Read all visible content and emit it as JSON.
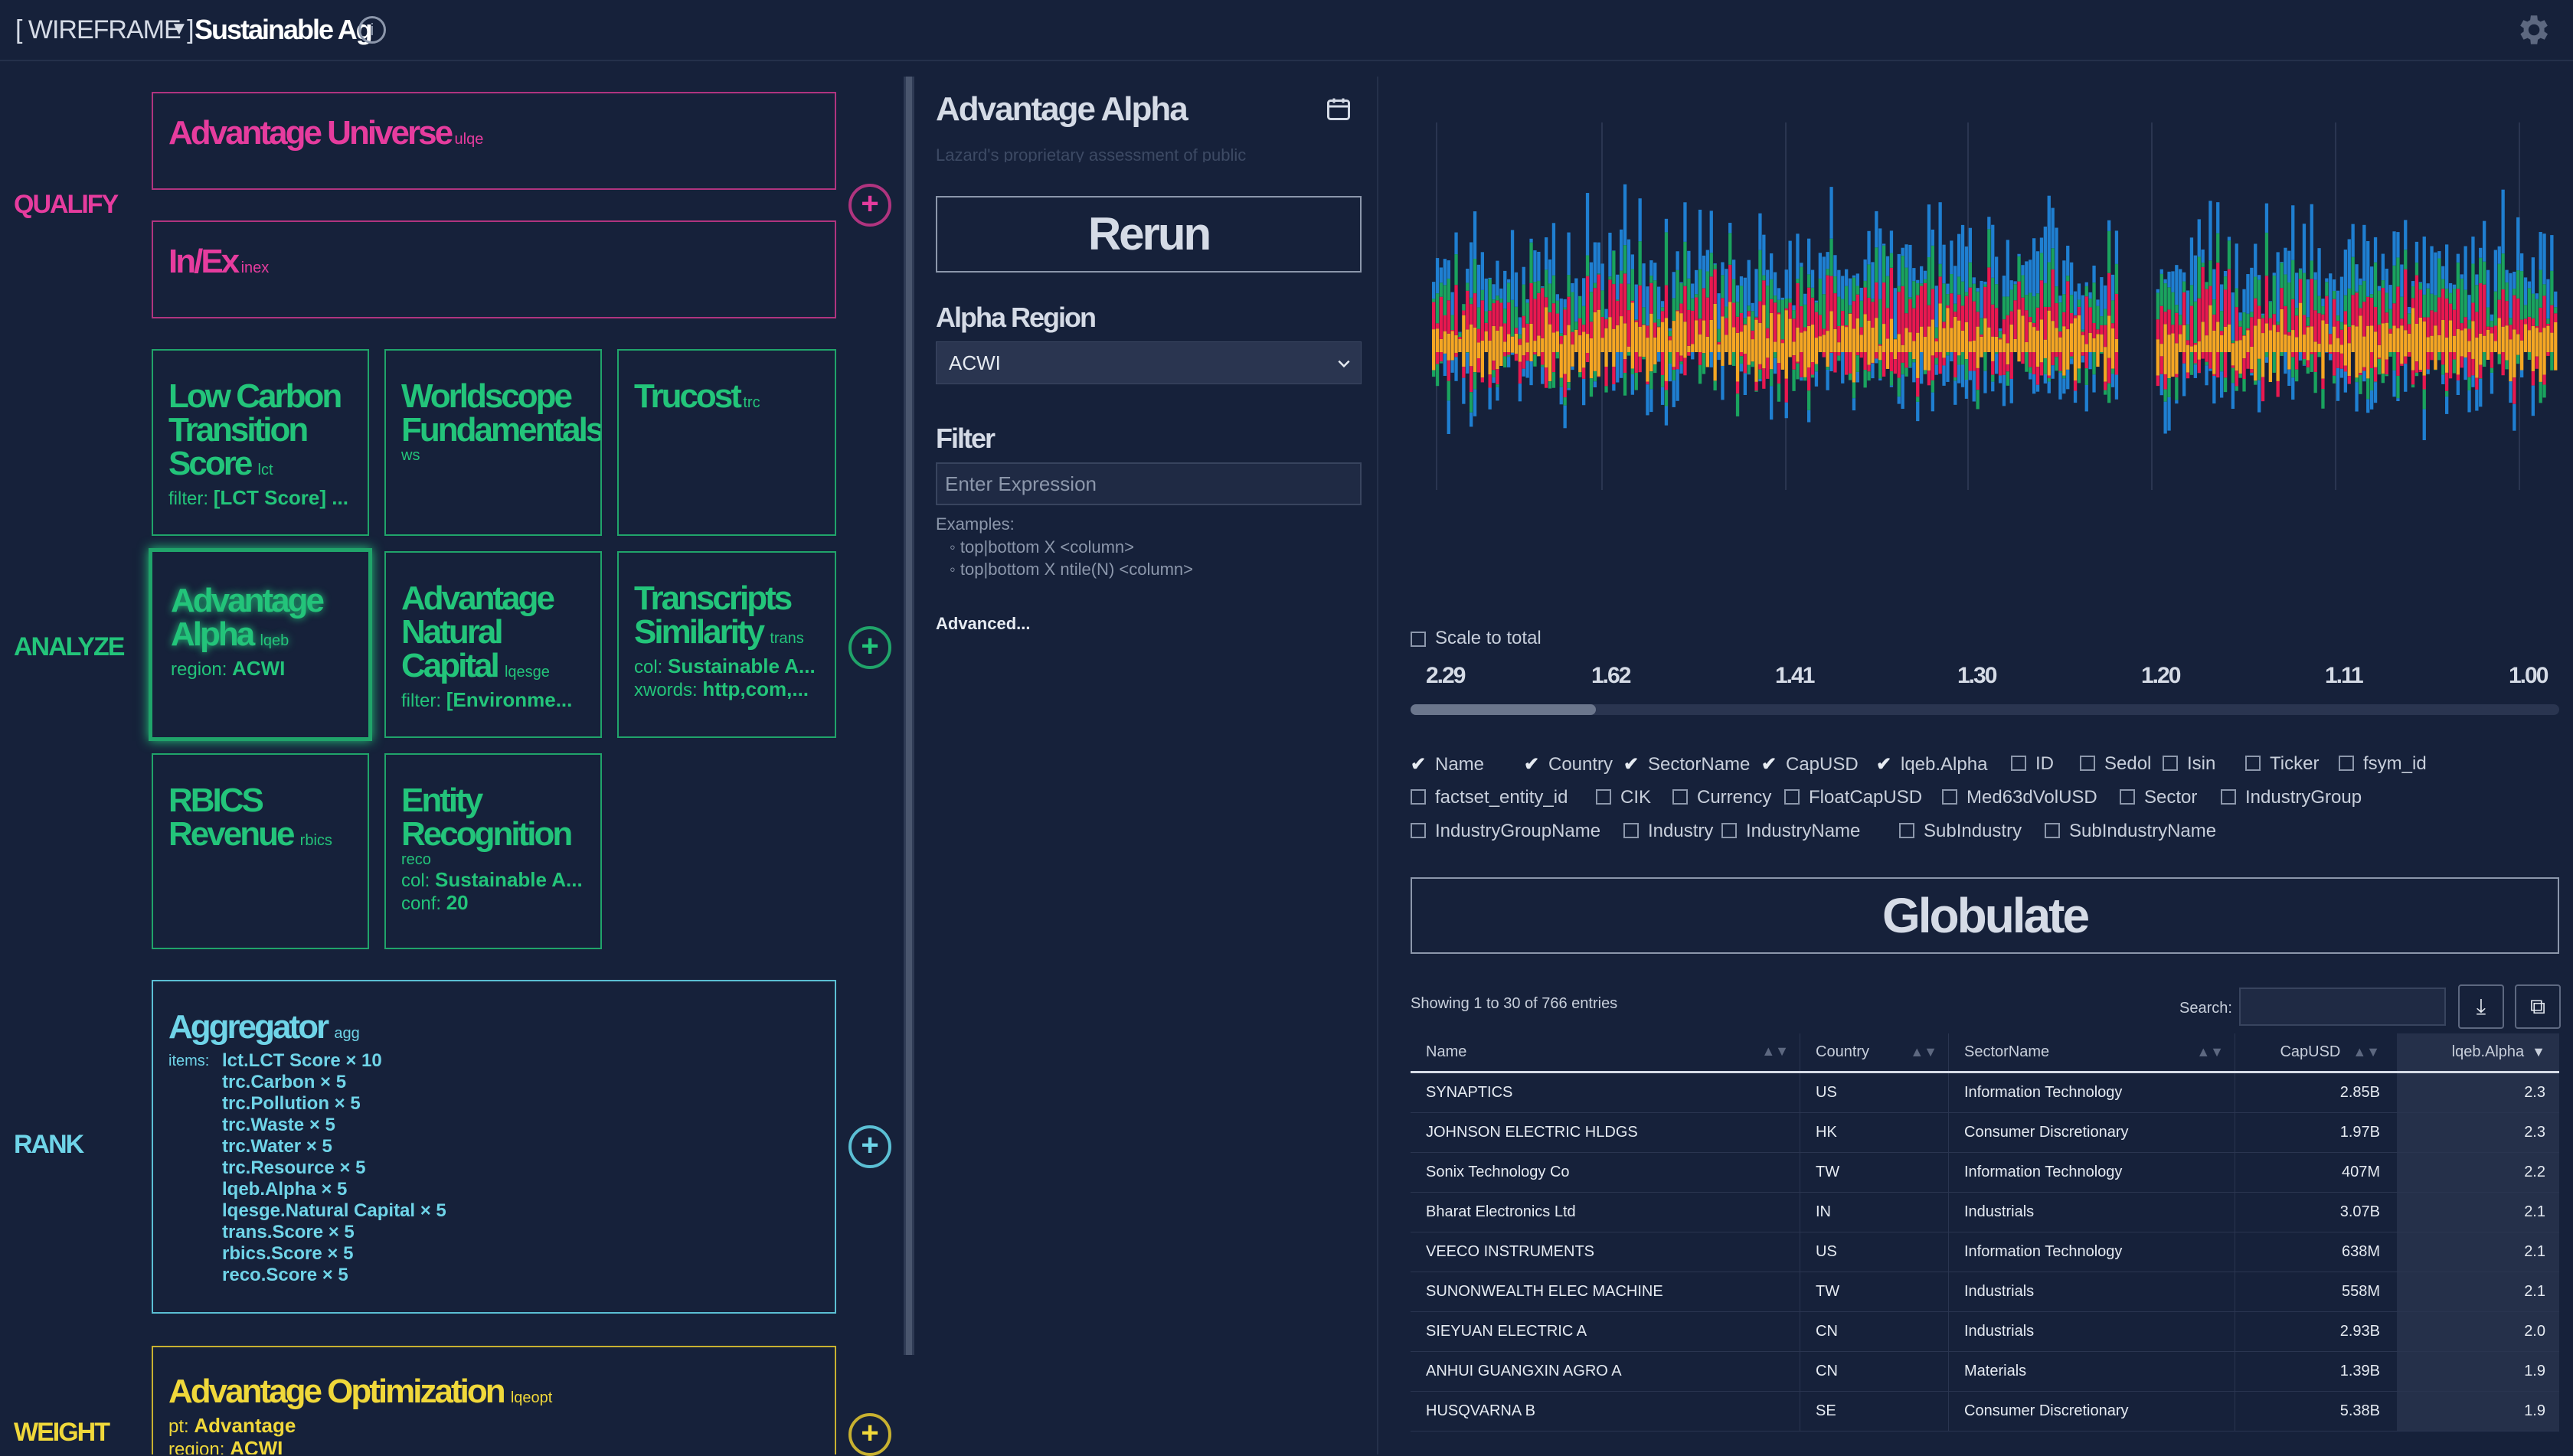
{
  "topbar": {
    "wireframe": "[ WIREFRAME ]",
    "caret": "▼",
    "title": "Sustainable Ag",
    "info": "i"
  },
  "stages": {
    "qualify": "QUALIFY",
    "analyze": "ANALYZE",
    "rank": "RANK",
    "weight": "WEIGHT"
  },
  "cards": {
    "universe": {
      "title": "Advantage Universe",
      "code": "ulqe"
    },
    "inex": {
      "title": "In/Ex",
      "code": "inex"
    },
    "lct": {
      "title": "Low Carbon Transition Score",
      "code": "lct",
      "meta_key": "filter:",
      "meta_val": "[LCT Score] ..."
    },
    "ws": {
      "title": "Worldscope Fundamentals",
      "code": "ws"
    },
    "trc": {
      "title": "Trucost",
      "code": "trc"
    },
    "alpha": {
      "title": "Advantage Alpha",
      "code": "lqeb",
      "meta_key": "region:",
      "meta_val": "ACWI"
    },
    "nat": {
      "title": "Advantage Natural Capital",
      "code": "lqesge",
      "meta_key": "filter:",
      "meta_val": "[Environme..."
    },
    "trans": {
      "title": "Transcripts Similarity",
      "code": "trans",
      "meta_key": "col:",
      "meta_val": "Sustainable A...",
      "meta2_key": "xwords:",
      "meta2_val": "http,com,..."
    },
    "rbics": {
      "title": "RBICS Revenue",
      "code": "rbics"
    },
    "reco": {
      "title": "Entity Recognition",
      "code": "reco",
      "meta_key": "col:",
      "meta_val": "Sustainable A...",
      "meta2_key": "conf:",
      "meta2_val": "20"
    },
    "agg": {
      "title": "Aggregator",
      "code": "agg",
      "items_key": "items:",
      "items": [
        "lct.LCT Score × 10",
        "trc.Carbon × 5",
        "trc.Pollution × 5",
        "trc.Waste × 5",
        "trc.Water × 5",
        "trc.Resource × 5",
        "lqeb.Alpha × 5",
        "lqesge.Natural Capital × 5",
        "trans.Score × 5",
        "rbics.Score × 5",
        "reco.Score × 5"
      ]
    },
    "opt": {
      "title": "Advantage Optimization",
      "code": "lqeopt",
      "meta_key": "pt:",
      "meta_val": "Advantage",
      "meta2_key": "region:",
      "meta2_val": "ACWI"
    }
  },
  "mid": {
    "title": "Advantage Alpha",
    "description": "Lazard's proprietary assessment of public",
    "rerun": "Rerun",
    "region_label": "Alpha Region",
    "region_value": "ACWI",
    "filter_label": "Filter",
    "filter_placeholder": "Enter Expression",
    "examples_label": "Examples:",
    "examples": [
      "top|bottom X <column>",
      "top|bottom X ntile(N) <column>"
    ],
    "advanced": "Advanced..."
  },
  "chart_data": {
    "type": "bar",
    "stacked": true,
    "x_ticks": [
      "2.29",
      "1.62",
      "1.41",
      "1.30",
      "1.20",
      "1.11",
      "1.00"
    ],
    "series_colors": [
      "#f5a623",
      "#e8184f",
      "#1aa35e",
      "#1f7fd1"
    ],
    "bar_count": 300,
    "scale_to_total_label": "Scale to total",
    "scale_to_total": false
  },
  "columns": [
    {
      "label": "Name",
      "checked": true
    },
    {
      "label": "Country",
      "checked": true
    },
    {
      "label": "SectorName",
      "checked": true
    },
    {
      "label": "CapUSD",
      "checked": true
    },
    {
      "label": "lqeb.Alpha",
      "checked": true
    },
    {
      "label": "ID",
      "checked": false
    },
    {
      "label": "Sedol",
      "checked": false
    },
    {
      "label": "Isin",
      "checked": false
    },
    {
      "label": "Ticker",
      "checked": false
    },
    {
      "label": "fsym_id",
      "checked": false
    },
    {
      "label": "factset_entity_id",
      "checked": false
    },
    {
      "label": "CIK",
      "checked": false
    },
    {
      "label": "Currency",
      "checked": false
    },
    {
      "label": "FloatCapUSD",
      "checked": false
    },
    {
      "label": "Med63dVolUSD",
      "checked": false
    },
    {
      "label": "Sector",
      "checked": false
    },
    {
      "label": "IndustryGroup",
      "checked": false
    },
    {
      "label": "IndustryGroupName",
      "checked": false
    },
    {
      "label": "Industry",
      "checked": false
    },
    {
      "label": "IndustryName",
      "checked": false
    },
    {
      "label": "SubIndustry",
      "checked": false
    },
    {
      "label": "SubIndustryName",
      "checked": false
    }
  ],
  "globulate": "Globulate",
  "table": {
    "showing": "Showing 1 to 30 of 766 entries",
    "search_label": "Search:",
    "headers": [
      "Name",
      "Country",
      "SectorName",
      "CapUSD",
      "lqeb.Alpha"
    ],
    "rows": [
      [
        "SYNAPTICS",
        "US",
        "Information Technology",
        "2.85B",
        "2.3"
      ],
      [
        "JOHNSON ELECTRIC HLDGS",
        "HK",
        "Consumer Discretionary",
        "1.97B",
        "2.3"
      ],
      [
        "Sonix Technology Co",
        "TW",
        "Information Technology",
        "407M",
        "2.2"
      ],
      [
        "Bharat Electronics Ltd",
        "IN",
        "Industrials",
        "3.07B",
        "2.1"
      ],
      [
        "VEECO INSTRUMENTS",
        "US",
        "Information Technology",
        "638M",
        "2.1"
      ],
      [
        "SUNONWEALTH ELEC MACHINE",
        "TW",
        "Industrials",
        "558M",
        "2.1"
      ],
      [
        "SIEYUAN ELECTRIC A",
        "CN",
        "Industrials",
        "2.93B",
        "2.0"
      ],
      [
        "ANHUI GUANGXIN AGRO A",
        "CN",
        "Materials",
        "1.39B",
        "1.9"
      ],
      [
        "HUSQVARNA B",
        "SE",
        "Consumer Discretionary",
        "5.38B",
        "1.9"
      ]
    ]
  }
}
